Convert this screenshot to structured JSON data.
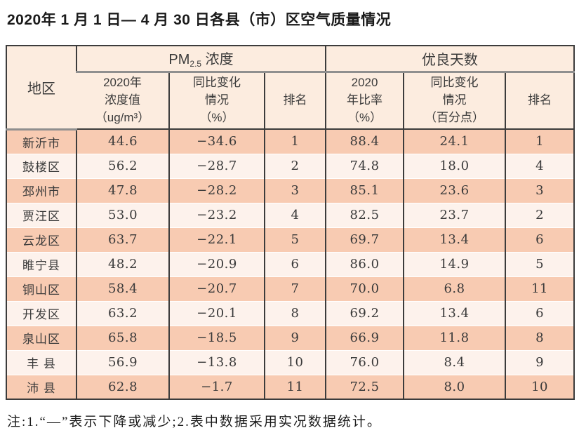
{
  "title": "2020年 1 月 1 日— 4 月 30 日各县（市）区空气质量情况",
  "note": "注:1.“—”表示下降或减少;2.表中数据采用实况数据统计。",
  "colors": {
    "row_odd": "#f8cbb2",
    "row_even": "#fdf2ec",
    "header_bg": "#fcecdf",
    "border_dark": "#3c3c3c",
    "border_gray": "#8f8f8f",
    "text": "#3a3a3a"
  },
  "table": {
    "region_header": "地区",
    "pm_group": {
      "title_pm": "PM",
      "title_sub": "2.5",
      "title_rest": " 浓度",
      "col_value": "2020年\n浓度值\n（ug/m³）",
      "col_change": "同比变化\n情况\n（%）",
      "col_rank": "排名"
    },
    "good_group": {
      "title": "优良天数",
      "col_rate": "2020\n年比率\n（%）",
      "col_change": "同比变化\n情况\n（百分点）",
      "col_rank": "排名"
    },
    "rows": [
      {
        "region": "新沂市",
        "pm_value": "44.6",
        "pm_change": "−34.6",
        "pm_rank": "1",
        "good_rate": "88.4",
        "good_change": "24.1",
        "good_rank": "1"
      },
      {
        "region": "鼓楼区",
        "pm_value": "56.2",
        "pm_change": "−28.7",
        "pm_rank": "2",
        "good_rate": "74.8",
        "good_change": "18.0",
        "good_rank": "4"
      },
      {
        "region": "邳州市",
        "pm_value": "47.8",
        "pm_change": "−28.2",
        "pm_rank": "3",
        "good_rate": "85.1",
        "good_change": "23.6",
        "good_rank": "3"
      },
      {
        "region": "贾汪区",
        "pm_value": "53.0",
        "pm_change": "−23.2",
        "pm_rank": "4",
        "good_rate": "82.5",
        "good_change": "23.7",
        "good_rank": "2"
      },
      {
        "region": "云龙区",
        "pm_value": "63.7",
        "pm_change": "−22.1",
        "pm_rank": "5",
        "good_rate": "69.7",
        "good_change": "13.4",
        "good_rank": "6"
      },
      {
        "region": "睢宁县",
        "pm_value": "48.2",
        "pm_change": "−20.9",
        "pm_rank": "6",
        "good_rate": "86.0",
        "good_change": "14.9",
        "good_rank": "5"
      },
      {
        "region": "铜山区",
        "pm_value": "58.4",
        "pm_change": "−20.7",
        "pm_rank": "7",
        "good_rate": "70.0",
        "good_change": "6.8",
        "good_rank": "11"
      },
      {
        "region": "开发区",
        "pm_value": "63.2",
        "pm_change": "−20.1",
        "pm_rank": "8",
        "good_rate": "69.2",
        "good_change": "13.4",
        "good_rank": "6"
      },
      {
        "region": "泉山区",
        "pm_value": "65.8",
        "pm_change": "−18.5",
        "pm_rank": "9",
        "good_rate": "66.9",
        "good_change": "11.8",
        "good_rank": "8"
      },
      {
        "region": "丰 县",
        "pm_value": "56.9",
        "pm_change": "−13.8",
        "pm_rank": "10",
        "good_rate": "76.0",
        "good_change": "8.4",
        "good_rank": "9"
      },
      {
        "region": "沛 县",
        "pm_value": "62.8",
        "pm_change": "−1.7",
        "pm_rank": "11",
        "good_rate": "72.5",
        "good_change": "8.0",
        "good_rank": "10"
      }
    ]
  }
}
